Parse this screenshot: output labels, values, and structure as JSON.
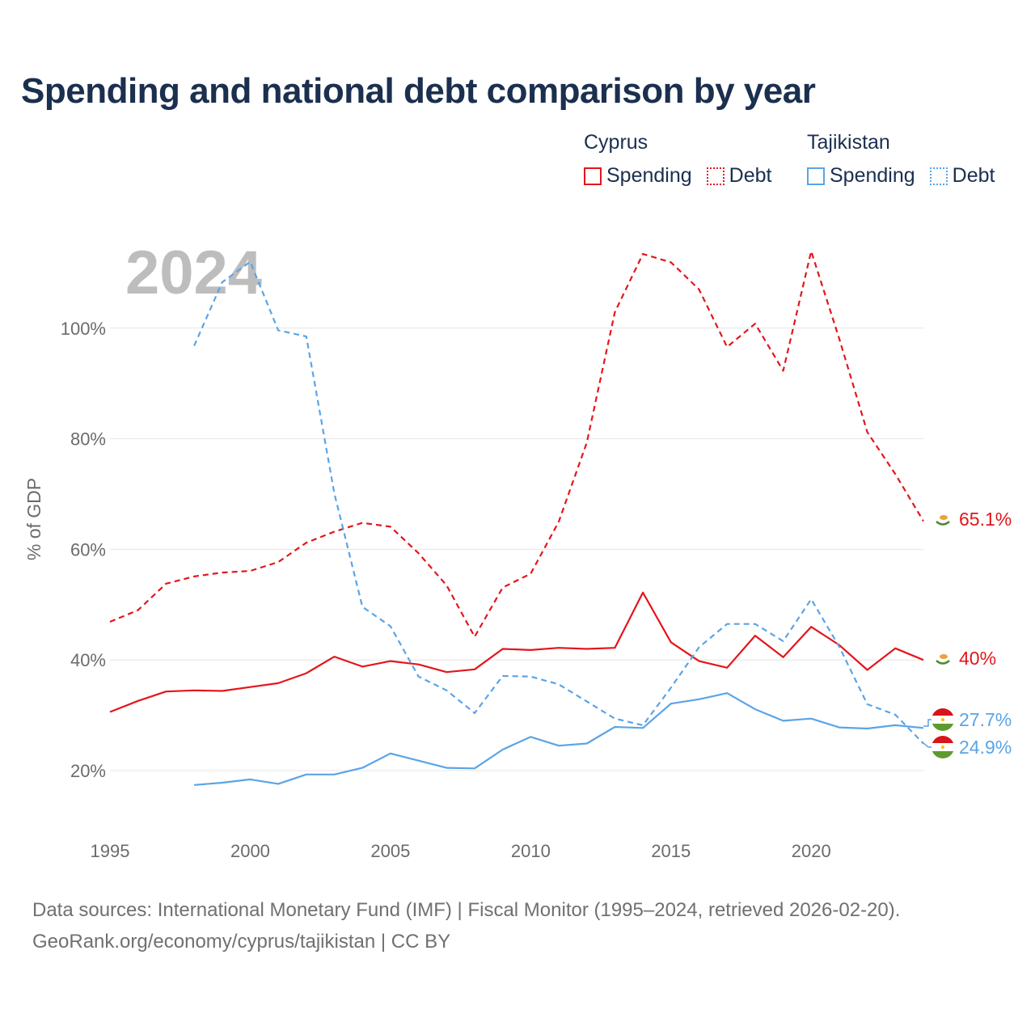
{
  "title": "Spending and national debt comparison by year",
  "legend": {
    "groups": [
      {
        "name": "Cyprus",
        "color": "#e3161b",
        "items": [
          {
            "label": "Spending",
            "style": "solid"
          },
          {
            "label": "Debt",
            "style": "dotted"
          }
        ]
      },
      {
        "name": "Tajikistan",
        "color": "#5ba4e6",
        "items": [
          {
            "label": "Spending",
            "style": "solid"
          },
          {
            "label": "Debt",
            "style": "dotted"
          }
        ]
      }
    ]
  },
  "footer": {
    "line1": "Data sources: International Monetary Fund (IMF) | Fiscal Monitor (1995–2024, retrieved 2026-02-20).",
    "line2": "GeoRank.org/economy/cyprus/tajikistan | CC BY"
  },
  "chart_data": {
    "type": "line",
    "title": "Spending and national debt comparison by year",
    "current_year": "2024",
    "xlabel": "",
    "ylabel": "% of GDP",
    "xlim": [
      1995,
      2024
    ],
    "ylim": [
      10,
      115
    ],
    "x_ticks": [
      1995,
      2000,
      2005,
      2010,
      2015,
      2020
    ],
    "y_ticks": [
      20,
      40,
      60,
      80,
      100
    ],
    "y_tick_labels": [
      "20%",
      "40%",
      "60%",
      "80%",
      "100%"
    ],
    "grid": true,
    "series": [
      {
        "name": "Cyprus Spending",
        "color": "#e3161b",
        "dash": "solid",
        "end_label": "40%",
        "x": [
          1995,
          1996,
          1997,
          1998,
          1999,
          2000,
          2001,
          2002,
          2003,
          2004,
          2005,
          2006,
          2007,
          2008,
          2009,
          2010,
          2011,
          2012,
          2013,
          2014,
          2015,
          2016,
          2017,
          2018,
          2019,
          2020,
          2021,
          2022,
          2023,
          2024
        ],
        "values": [
          30.6,
          32.6,
          34.3,
          34.5,
          34.4,
          35.1,
          35.8,
          37.6,
          40.6,
          38.8,
          39.8,
          39.2,
          37.8,
          38.3,
          42.0,
          41.8,
          42.2,
          42.0,
          42.2,
          52.2,
          43.2,
          39.8,
          38.6,
          44.4,
          40.5,
          46.0,
          42.7,
          38.2,
          42.1,
          40.0
        ]
      },
      {
        "name": "Cyprus Debt",
        "color": "#e3161b",
        "dash": "dashed",
        "end_label": "65.1%",
        "x": [
          1995,
          1996,
          1997,
          1998,
          1999,
          2000,
          2001,
          2002,
          2003,
          2004,
          2005,
          2006,
          2007,
          2008,
          2009,
          2010,
          2011,
          2012,
          2013,
          2014,
          2015,
          2016,
          2017,
          2018,
          2019,
          2020,
          2021,
          2022,
          2023,
          2024
        ],
        "values": [
          46.9,
          49.0,
          53.8,
          55.1,
          55.8,
          56.1,
          57.7,
          61.2,
          63.2,
          64.8,
          64.1,
          59.3,
          53.5,
          44.2,
          53.1,
          55.6,
          65.0,
          79.3,
          102.9,
          113.4,
          111.9,
          107.0,
          96.6,
          100.8,
          92.3,
          113.9,
          98.1,
          81.2,
          73.6,
          65.1
        ]
      },
      {
        "name": "Tajikistan Spending",
        "color": "#5ba4e6",
        "dash": "solid",
        "end_label": "27.7%",
        "x": [
          1998,
          1999,
          2000,
          2001,
          2002,
          2003,
          2004,
          2005,
          2006,
          2007,
          2008,
          2009,
          2010,
          2011,
          2012,
          2013,
          2014,
          2015,
          2016,
          2017,
          2018,
          2019,
          2020,
          2021,
          2022,
          2023,
          2024
        ],
        "values": [
          17.4,
          17.8,
          18.4,
          17.6,
          19.3,
          19.3,
          20.5,
          23.1,
          21.8,
          20.5,
          20.4,
          23.8,
          26.1,
          24.5,
          24.9,
          27.9,
          27.7,
          32.1,
          32.9,
          34.0,
          31.1,
          29.0,
          29.4,
          27.8,
          27.6,
          28.2,
          27.7
        ]
      },
      {
        "name": "Tajikistan Debt",
        "color": "#5ba4e6",
        "dash": "dashed",
        "end_label": "24.9%",
        "x": [
          1998,
          1999,
          2000,
          2001,
          2002,
          2003,
          2004,
          2005,
          2006,
          2007,
          2008,
          2009,
          2010,
          2011,
          2012,
          2013,
          2014,
          2015,
          2016,
          2017,
          2018,
          2019,
          2020,
          2021,
          2022,
          2023,
          2024
        ],
        "values": [
          96.8,
          108.3,
          112.0,
          99.6,
          98.5,
          70.1,
          49.6,
          46.1,
          37.0,
          34.5,
          30.4,
          37.1,
          37.0,
          35.6,
          32.5,
          29.4,
          28.2,
          35.0,
          42.3,
          46.5,
          46.5,
          43.4,
          51.0,
          42.4,
          32.0,
          30.1,
          24.9
        ]
      }
    ]
  }
}
